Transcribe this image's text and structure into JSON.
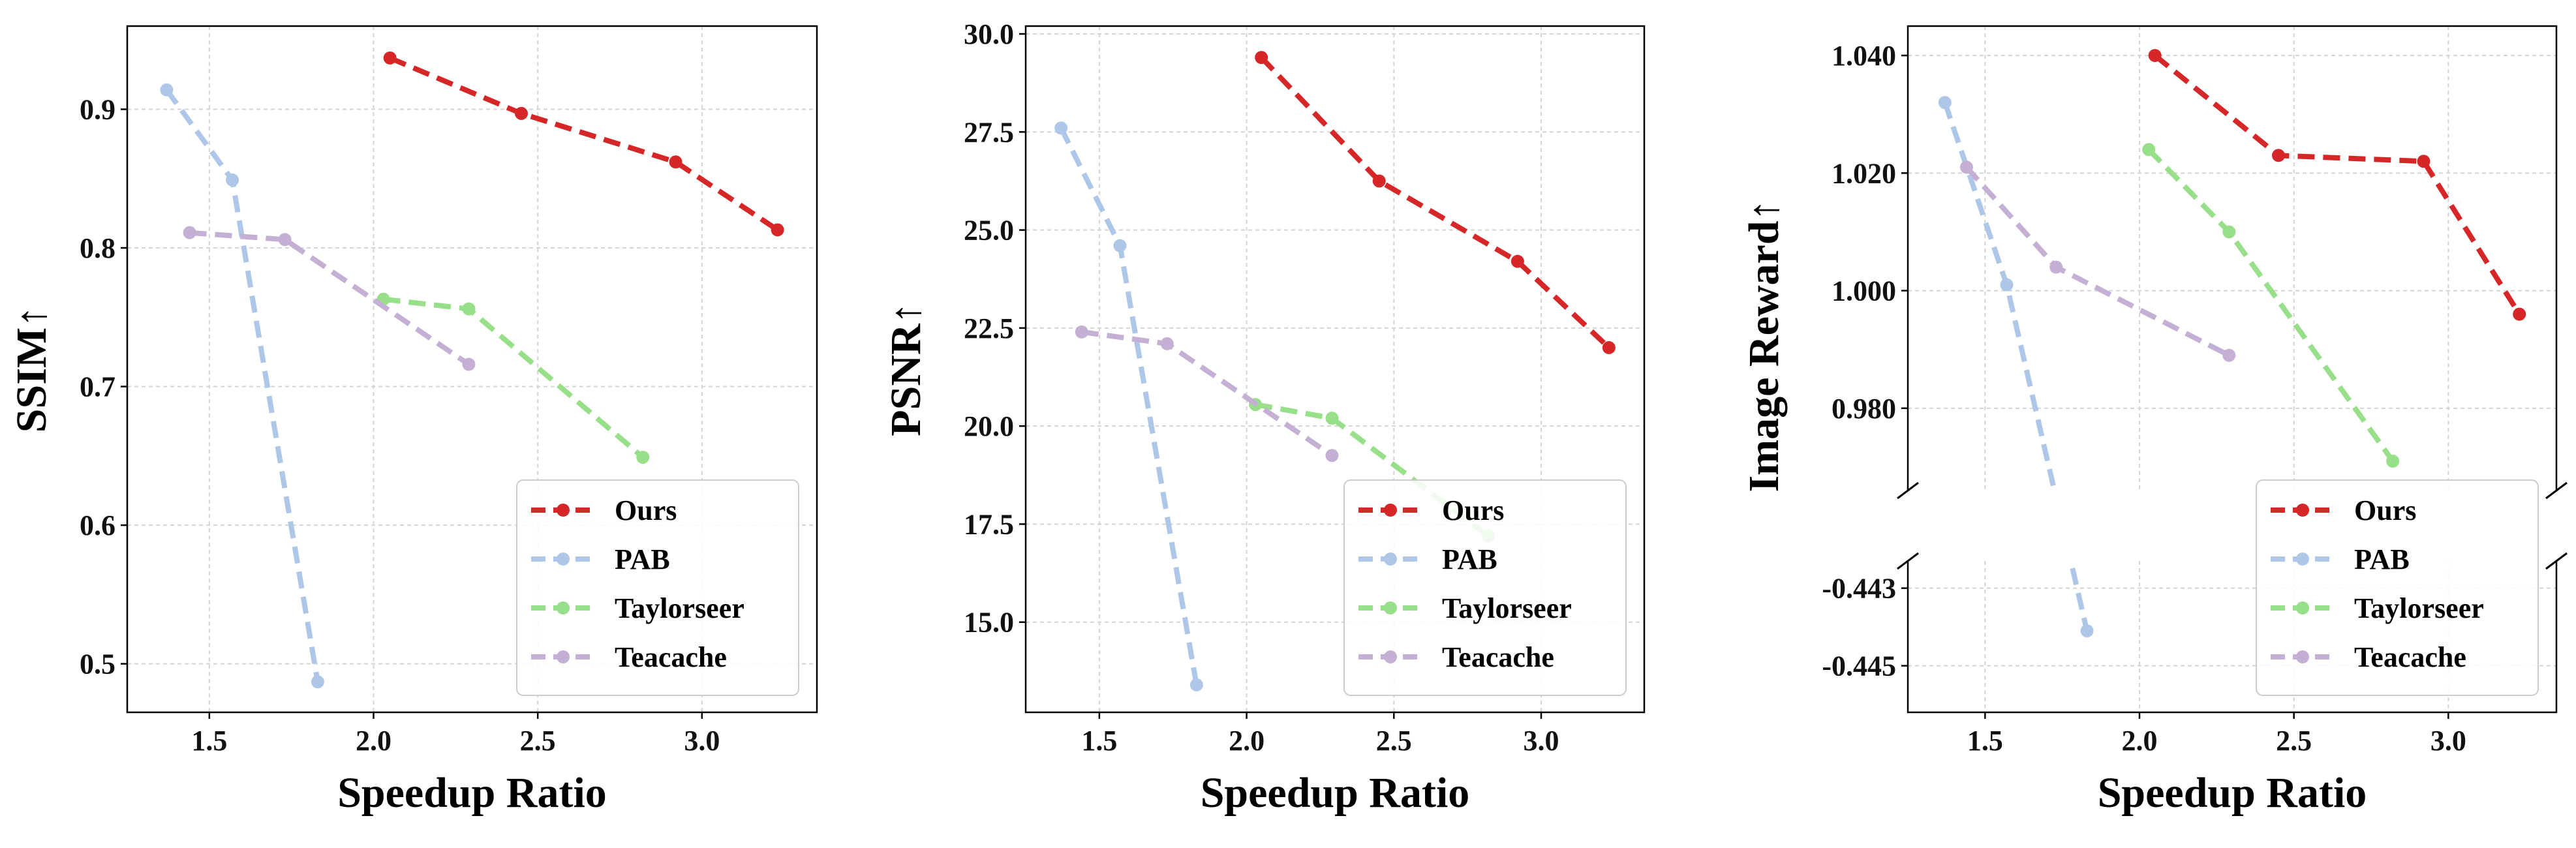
{
  "colors": {
    "Ours": "#d62728",
    "PAB": "#aec7e8",
    "Taylorseer": "#98df8a",
    "Teacache": "#c5b0d5"
  },
  "chart_data": [
    {
      "type": "line",
      "xlabel": "Speedup Ratio",
      "ylabel": "SSIM↑",
      "xlim": [
        1.25,
        3.35
      ],
      "ylim": [
        0.465,
        0.96
      ],
      "xticks": [
        1.5,
        2.0,
        2.5,
        3.0
      ],
      "xtick_labels": [
        "1.5",
        "2.0",
        "2.5",
        "3.0"
      ],
      "yticks": [
        0.5,
        0.6,
        0.7,
        0.8,
        0.9
      ],
      "ytick_labels": [
        "0.5",
        "0.6",
        "0.7",
        "0.8",
        "0.9"
      ],
      "grid": true,
      "legend": "bottom-right",
      "series": [
        {
          "name": "Ours",
          "x": [
            2.05,
            2.45,
            2.92,
            3.23
          ],
          "y": [
            0.937,
            0.897,
            0.862,
            0.813
          ]
        },
        {
          "name": "PAB",
          "x": [
            1.37,
            1.57,
            1.83
          ],
          "y": [
            0.914,
            0.849,
            0.487
          ]
        },
        {
          "name": "Taylorseer",
          "x": [
            2.03,
            2.29,
            2.82
          ],
          "y": [
            0.763,
            0.756,
            0.649
          ]
        },
        {
          "name": "Teacache",
          "x": [
            1.44,
            1.73,
            2.29
          ],
          "y": [
            0.811,
            0.806,
            0.716
          ]
        }
      ]
    },
    {
      "type": "line",
      "xlabel": "Speedup Ratio",
      "ylabel": "PSNR↑",
      "xlim": [
        1.25,
        3.35
      ],
      "ylim": [
        12.7,
        30.2
      ],
      "xticks": [
        1.5,
        2.0,
        2.5,
        3.0
      ],
      "xtick_labels": [
        "1.5",
        "2.0",
        "2.5",
        "3.0"
      ],
      "yticks": [
        15.0,
        17.5,
        20.0,
        22.5,
        25.0,
        27.5,
        30.0
      ],
      "ytick_labels": [
        "15.0",
        "17.5",
        "20.0",
        "22.5",
        "25.0",
        "27.5",
        "30.0"
      ],
      "grid": true,
      "legend": "bottom-right",
      "series": [
        {
          "name": "Ours",
          "x": [
            2.05,
            2.45,
            2.92,
            3.23
          ],
          "y": [
            29.4,
            26.25,
            24.2,
            22.0
          ]
        },
        {
          "name": "PAB",
          "x": [
            1.37,
            1.57,
            1.83
          ],
          "y": [
            27.6,
            24.6,
            13.4
          ]
        },
        {
          "name": "Taylorseer",
          "x": [
            2.03,
            2.29,
            2.82
          ],
          "y": [
            20.55,
            20.2,
            17.2
          ]
        },
        {
          "name": "Teacache",
          "x": [
            1.44,
            1.73,
            2.29
          ],
          "y": [
            22.4,
            22.1,
            19.25
          ]
        }
      ]
    },
    {
      "type": "line",
      "broken_y_axis": true,
      "xlabel": "Speedup Ratio",
      "ylabel": "Image Reward↑",
      "xlim": [
        1.25,
        3.35
      ],
      "top_ylim": [
        0.966,
        1.045
      ],
      "bottom_ylim": [
        -0.4462,
        -0.4423
      ],
      "xticks": [
        1.5,
        2.0,
        2.5,
        3.0
      ],
      "xtick_labels": [
        "1.5",
        "2.0",
        "2.5",
        "3.0"
      ],
      "top_yticks": [
        0.98,
        1.0,
        1.02,
        1.04
      ],
      "top_ytick_labels": [
        "0.980",
        "1.000",
        "1.020",
        "1.040"
      ],
      "bottom_yticks": [
        -0.443,
        -0.445
      ],
      "bottom_ytick_labels": [
        "-0.443",
        "-0.445"
      ],
      "grid": true,
      "legend": "bottom-right",
      "series": [
        {
          "name": "Ours",
          "x": [
            2.05,
            2.45,
            2.92,
            3.23
          ],
          "y": [
            1.04,
            1.023,
            1.022,
            0.996
          ]
        },
        {
          "name": "PAB",
          "x": [
            1.37,
            1.57,
            1.83
          ],
          "y": [
            1.032,
            1.001,
            -0.4441
          ]
        },
        {
          "name": "Taylorseer",
          "x": [
            2.03,
            2.29,
            2.82
          ],
          "y": [
            1.024,
            1.01,
            0.971
          ]
        },
        {
          "name": "Teacache",
          "x": [
            1.44,
            1.73,
            2.29
          ],
          "y": [
            1.021,
            1.004,
            0.989
          ]
        }
      ]
    }
  ]
}
